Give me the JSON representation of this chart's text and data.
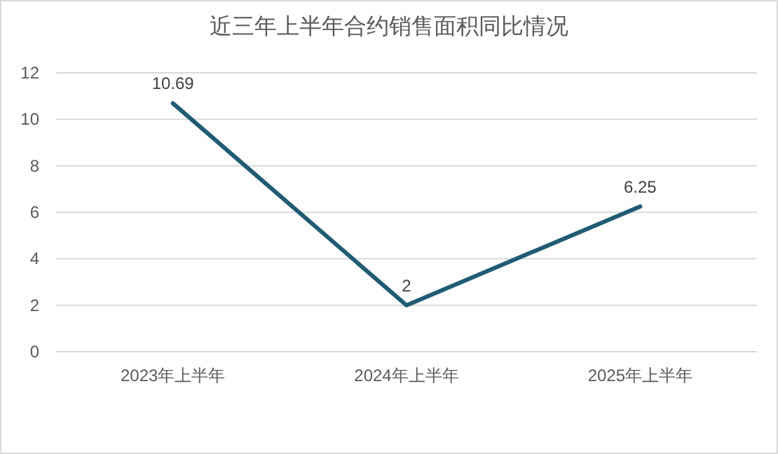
{
  "chart_data": {
    "type": "line",
    "title": "近三年上半年合约销售面积同比情况",
    "categories": [
      "2023年上半年",
      "2024年上半年",
      "2025年上半年"
    ],
    "series": [
      {
        "color": "#1f5c73",
        "values": [
          10.69,
          2,
          6.25
        ]
      }
    ],
    "ylim": [
      0,
      12
    ],
    "yticks": [
      0,
      2,
      4,
      6,
      8,
      10,
      12
    ],
    "grid": "y",
    "data_labels": true,
    "marker": "none",
    "line_style": "solid"
  }
}
